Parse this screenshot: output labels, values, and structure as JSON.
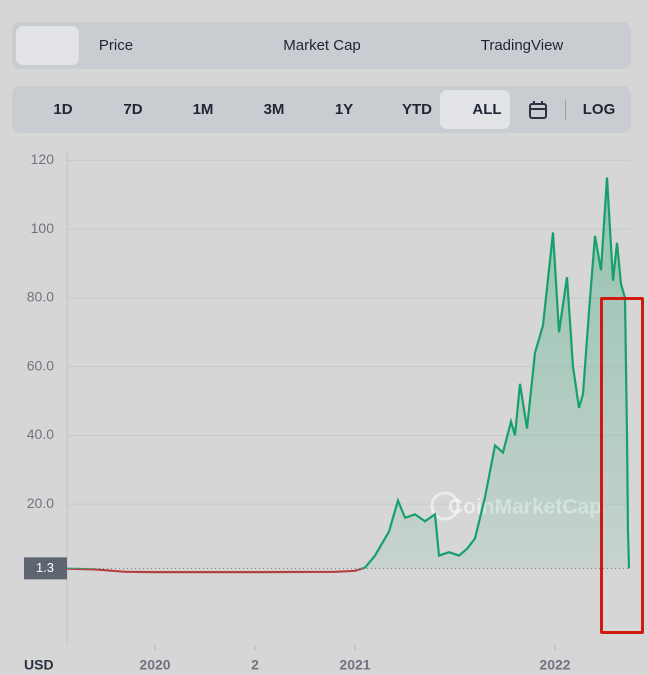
{
  "tabs": {
    "items": [
      "Price",
      "Market Cap",
      "TradingView"
    ]
  },
  "ranges": {
    "items": [
      "1D",
      "7D",
      "1M",
      "3M",
      "1Y",
      "YTD",
      "ALL"
    ],
    "log": "LOG"
  },
  "chart_data": {
    "type": "line",
    "watermark": "CoinMarketCap",
    "y_label": "USD",
    "current_price": 1.3,
    "x": [
      2019.56,
      2019.7,
      2019.85,
      2020.0,
      2020.5,
      2020.9,
      2021.0,
      2021.05,
      2021.1,
      2021.17,
      2021.215,
      2021.25,
      2021.3,
      2021.35,
      2021.4,
      2021.42,
      2021.47,
      2021.52,
      2021.56,
      2021.6,
      2021.65,
      2021.7,
      2021.74,
      2021.78,
      2021.8,
      2021.825,
      2021.86,
      2021.9,
      2021.94,
      2021.99,
      2022.02,
      2022.06,
      2022.09,
      2022.12,
      2022.14,
      2022.17,
      2022.2,
      2022.23,
      2022.26,
      2022.29,
      2022.31,
      2022.33,
      2022.35,
      2022.36,
      2022.365,
      2022.37
    ],
    "series": [
      {
        "color": "#16a06a",
        "below_color": "#b5413e",
        "values": [
          1.2,
          1.0,
          0.3,
          0.2,
          0.2,
          0.3,
          0.6,
          1.5,
          5,
          12,
          21,
          16,
          17,
          15,
          17,
          5,
          6,
          5,
          7,
          10,
          22,
          37,
          35,
          44,
          40,
          55,
          42,
          64,
          72,
          99,
          70,
          86,
          60,
          48,
          52,
          76,
          98,
          88,
          115,
          85,
          96,
          84,
          80,
          40,
          12,
          1.3
        ]
      }
    ],
    "xlim": [
      2019.56,
      2022.375
    ],
    "xticks": [
      2020,
      {
        "value": 2020.5,
        "label": "2"
      },
      2021,
      2022
    ],
    "ylim": [
      -21,
      123
    ],
    "yticks": [
      {
        "value": 20,
        "label": "20.0"
      },
      {
        "value": 40,
        "label": "40.0"
      },
      {
        "value": 60,
        "label": "60.0"
      },
      {
        "value": 80,
        "label": "80.0"
      },
      100,
      120
    ],
    "grid": true
  }
}
